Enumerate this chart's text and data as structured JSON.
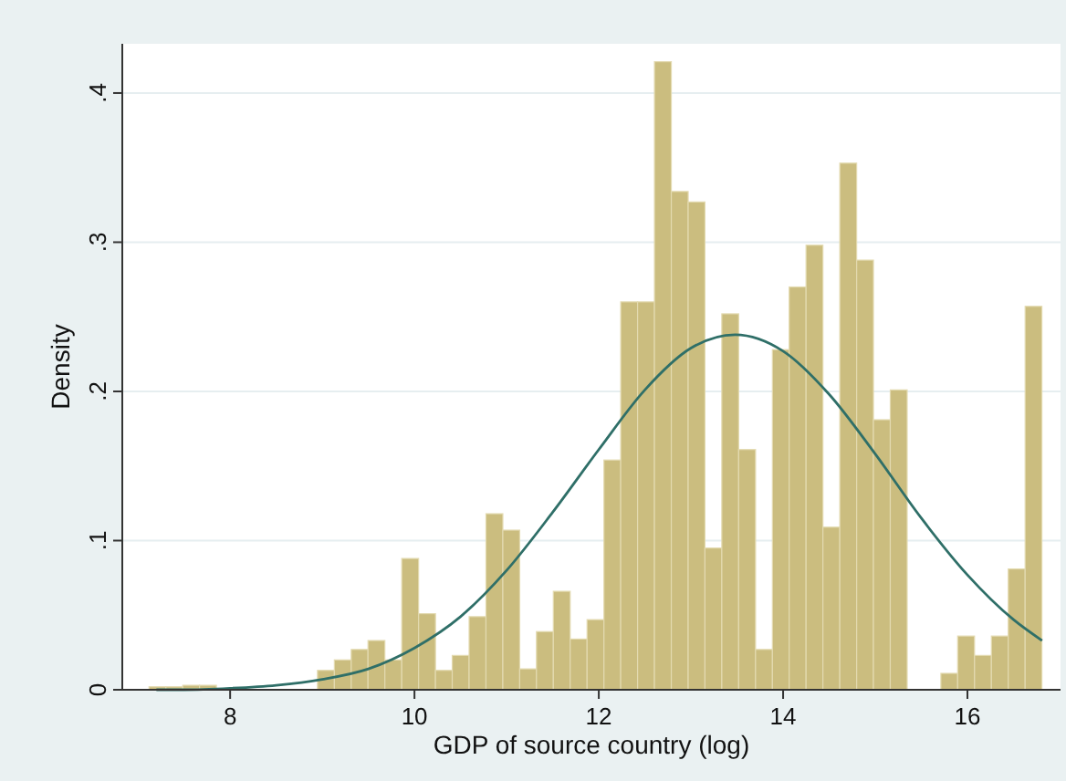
{
  "chart_data": {
    "type": "histogram",
    "xlabel": "GDP of source country (log)",
    "ylabel": "Density",
    "bins": [
      7.12,
      7.303,
      7.486,
      7.668,
      7.851,
      8.034,
      8.217,
      8.4,
      8.582,
      8.765,
      8.948,
      9.131,
      9.314,
      9.496,
      9.679,
      9.862,
      10.045,
      10.228,
      10.41,
      10.593,
      10.776,
      10.959,
      11.142,
      11.324,
      11.507,
      11.69,
      11.873,
      12.056,
      12.238,
      12.421,
      12.604,
      12.787,
      12.97,
      13.152,
      13.335,
      13.518,
      13.701,
      13.884,
      14.066,
      14.249,
      14.432,
      14.615,
      14.798,
      14.98,
      15.163,
      15.346,
      15.529,
      15.712,
      15.894,
      16.077,
      16.26,
      16.443,
      16.626,
      16.808
    ],
    "series": [
      {
        "color": "#cbbd7f",
        "values": [
          0.002,
          0.002,
          0.003,
          0.003,
          null,
          0,
          0,
          0,
          0,
          0,
          0.013,
          0.02,
          0.027,
          0.033,
          0.02,
          0.088,
          0.051,
          0.013,
          0.023,
          0.049,
          0.118,
          0.107,
          0.014,
          0.039,
          0.066,
          0.034,
          0.047,
          0.154,
          0.26,
          0.26,
          0.421,
          0.334,
          0.327,
          0.095,
          0.252,
          0.161,
          0.027,
          0.228,
          0.27,
          0.298,
          0.109,
          0.353,
          0.288,
          0.181,
          0.201,
          0,
          0,
          0.011,
          0.036,
          0.023,
          0.036,
          0.081,
          0.257
        ]
      },
      {
        "type": "line",
        "color": "#2f6f68",
        "x": [
          7.2,
          7.5,
          8,
          8.5,
          9,
          9.5,
          10,
          10.5,
          11,
          11.5,
          12,
          12.5,
          13,
          13.48,
          14,
          14.5,
          15,
          15.5,
          16,
          16.5,
          16.81
        ],
        "values": [
          0,
          0,
          0.001,
          0.003,
          0.007,
          0.014,
          0.028,
          0.049,
          0.08,
          0.119,
          0.161,
          0.201,
          0.229,
          0.238,
          0.227,
          0.198,
          0.158,
          0.115,
          0.077,
          0.047,
          0.033
        ]
      }
    ],
    "xlim": [
      6.83,
      17.01
    ],
    "ylim": [
      0,
      0.433
    ],
    "xticks": [
      8,
      10,
      12,
      14,
      16
    ],
    "yticks": [
      0,
      {
        "value": 0.1,
        "label": ".1"
      },
      {
        "value": 0.2,
        "label": ".2"
      },
      {
        "value": 0.3,
        "label": ".3"
      },
      {
        "value": 0.4,
        "label": ".4"
      }
    ],
    "grid": "y"
  }
}
